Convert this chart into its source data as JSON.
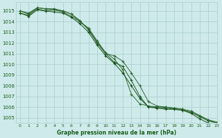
{
  "xlabel": "Graphe pression niveau de la mer (hPa)",
  "xlim": [
    -0.5,
    23
  ],
  "ylim": [
    1004.5,
    1015.8
  ],
  "yticks": [
    1005,
    1006,
    1007,
    1008,
    1009,
    1010,
    1011,
    1012,
    1013,
    1014,
    1015
  ],
  "xticks": [
    0,
    1,
    2,
    3,
    4,
    5,
    6,
    7,
    8,
    9,
    10,
    11,
    12,
    13,
    14,
    15,
    16,
    17,
    18,
    19,
    20,
    21,
    22,
    23
  ],
  "background_color": "#ceeaea",
  "grid_color": "#aacccc",
  "lines": [
    {
      "color": "#2d6b2d",
      "data": [
        1014.8,
        1014.6,
        1015.2,
        1015.0,
        1015.1,
        1014.9,
        1014.5,
        1014.0,
        1013.4,
        1012.2,
        1011.1,
        1010.5,
        1009.5,
        1007.2,
        1006.3,
        1006.1,
        1006.0,
        1006.0,
        1005.9,
        1005.8,
        1005.6,
        1005.2,
        1004.8,
        1004.6
      ]
    },
    {
      "color": "#1a5c1a",
      "data": [
        1015.0,
        1014.7,
        1015.3,
        1015.2,
        1015.2,
        1015.0,
        1014.7,
        1014.1,
        1013.2,
        1012.0,
        1011.0,
        1010.2,
        1009.8,
        1008.5,
        1007.0,
        1006.0,
        1006.0,
        1005.9,
        1005.8,
        1005.7,
        1005.5,
        1005.1,
        1004.7,
        1004.5
      ]
    },
    {
      "color": "#336633",
      "data": [
        1015.0,
        1014.8,
        1015.3,
        1015.2,
        1015.1,
        1015.0,
        1014.7,
        1014.0,
        1013.3,
        1012.1,
        1011.0,
        1010.8,
        1010.3,
        1009.2,
        1008.0,
        1006.5,
        1006.1,
        1006.0,
        1005.9,
        1005.8,
        1005.6,
        1005.2,
        1004.8,
        1004.5
      ]
    },
    {
      "color": "#1a4d1a",
      "data": [
        1014.8,
        1014.5,
        1015.1,
        1015.0,
        1014.9,
        1014.8,
        1014.4,
        1013.8,
        1013.0,
        1011.8,
        1010.8,
        1010.1,
        1009.2,
        1008.0,
        1006.8,
        1006.0,
        1005.9,
        1005.8,
        1005.8,
        1005.7,
        1005.4,
        1004.9,
        1004.5,
        1004.3
      ]
    }
  ]
}
